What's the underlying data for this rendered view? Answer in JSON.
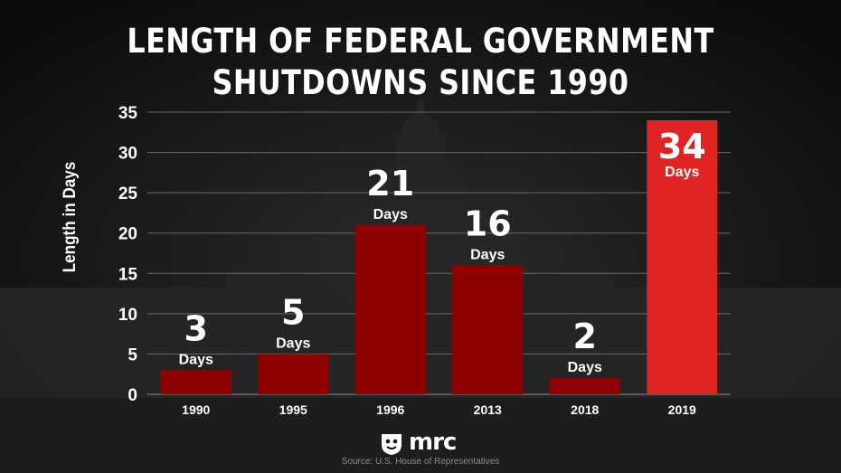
{
  "title_lines": [
    "LENGTH OF FEDERAL GOVERNMENT",
    "SHUTDOWNS SINCE 1990"
  ],
  "logo_text": "mrc",
  "source": "Source: U.S. House of Representatives",
  "colors": {
    "bar": "#8f0000",
    "bar_highlight": "#e02424",
    "grid": "#6a6a6a",
    "text": "#ffffff"
  },
  "chart_data": {
    "type": "bar",
    "title": "LENGTH OF FEDERAL GOVERNMENT SHUTDOWNS SINCE 1990",
    "xlabel": "",
    "ylabel": "Length in Days",
    "categories": [
      "1990",
      "1995",
      "1996",
      "2013",
      "2018",
      "2019"
    ],
    "values": [
      3,
      5,
      21,
      16,
      2,
      34
    ],
    "value_unit_label": "Days",
    "highlight_category": "2019",
    "ylim": [
      0,
      35
    ],
    "yticks": [
      0,
      5,
      10,
      15,
      20,
      25,
      30,
      35
    ],
    "grid": true
  }
}
